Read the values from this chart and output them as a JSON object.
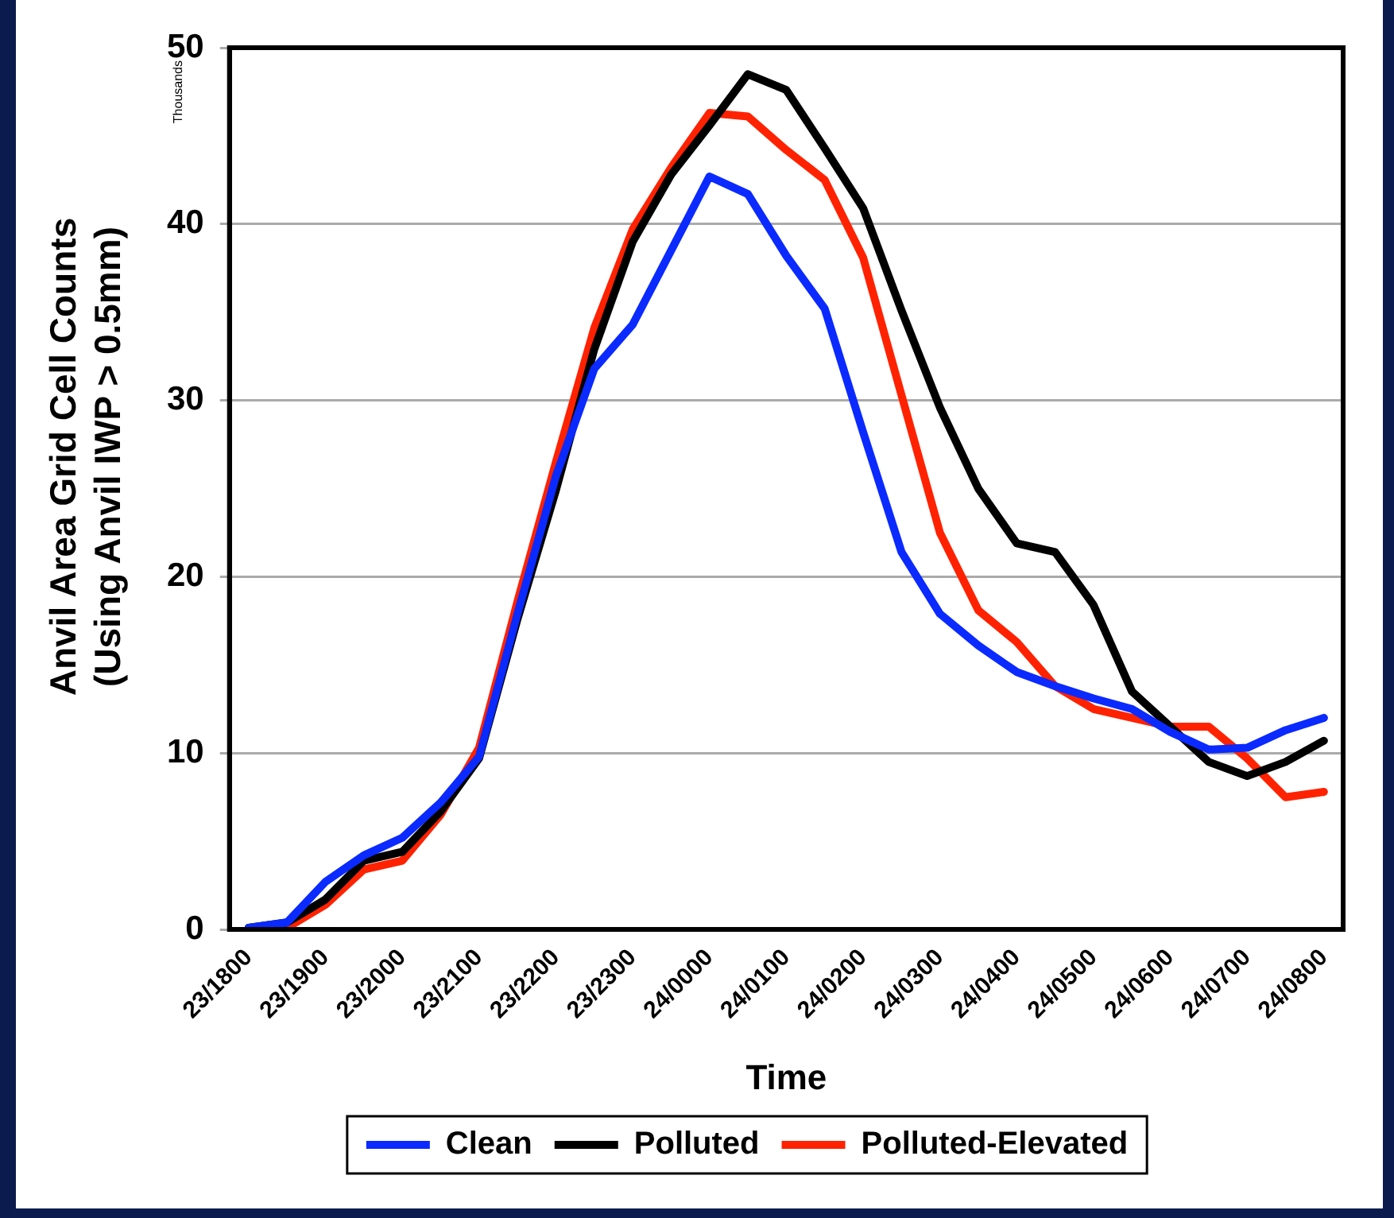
{
  "chart_data": {
    "type": "line",
    "xlabel": "Time",
    "ylabel": "Anvil Area Grid Cell Counts\n(Using Anvil IWP > 0.5mm)",
    "annotations": [
      "Thousands"
    ],
    "categories": [
      "23/1800",
      null,
      "23/1900",
      null,
      "23/2000",
      null,
      "23/2100",
      null,
      "23/2200",
      null,
      "23/2300",
      null,
      "24/0000",
      null,
      "24/0100",
      null,
      "24/0200",
      null,
      "24/0300",
      null,
      "24/0400",
      null,
      "24/0500",
      null,
      "24/0600",
      null,
      "24/0700",
      null,
      "24/0800"
    ],
    "series": [
      {
        "name": "Clean",
        "color": "#0a2aff",
        "values": [
          0.1,
          0.4,
          2.7,
          4.2,
          5.2,
          7.2,
          9.8,
          17.9,
          25.7,
          31.8,
          34.3,
          38.5,
          42.7,
          41.7,
          38.2,
          35.2,
          28.2,
          21.4,
          17.9,
          16.1,
          14.6,
          13.8,
          13.1,
          12.5,
          11.2,
          10.2,
          10.3,
          11.3,
          12.0
        ]
      },
      {
        "name": "Polluted",
        "color": "#000000",
        "values": [
          0.1,
          0.4,
          1.7,
          3.9,
          4.4,
          6.7,
          9.7,
          17.6,
          24.9,
          32.9,
          39.0,
          42.8,
          45.6,
          48.5,
          47.6,
          44.3,
          40.9,
          35.1,
          29.6,
          25.0,
          21.9,
          21.4,
          18.4,
          13.5,
          11.5,
          9.5,
          8.7,
          9.5,
          10.7
        ]
      },
      {
        "name": "Polluted-Elevated",
        "color": "#ff2200",
        "values": [
          0,
          0.1,
          1.4,
          3.4,
          3.9,
          6.5,
          10.3,
          18.6,
          26.5,
          34.1,
          39.7,
          43.2,
          46.3,
          46.1,
          44.2,
          42.5,
          38.1,
          30.3,
          22.5,
          18.1,
          16.3,
          13.8,
          12.5,
          12.0,
          11.5,
          11.5,
          9.7,
          7.5,
          7.8
        ]
      }
    ],
    "ylim": [
      0,
      50
    ],
    "yticks": [
      0,
      10,
      20,
      30,
      40,
      50
    ],
    "grid": "y",
    "legend": "bottom",
    "marker": "none",
    "line_style": "solid"
  }
}
